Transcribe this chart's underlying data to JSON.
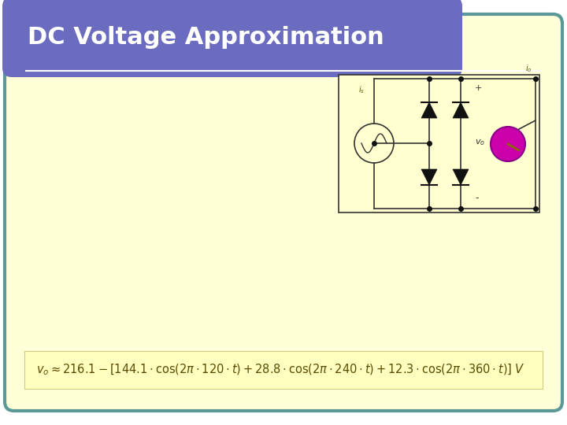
{
  "title": "DC Voltage Approximation",
  "title_color": "#ffffff",
  "title_bg_color": "#6B6BBF",
  "slide_bg_color": "#ffffff",
  "content_bg_color": "#FFFFD8",
  "border_color": "#5B9898",
  "formula_text": "$v_o \\approx 216.1 - [144.1 \\cdot \\cos(2\\pi \\cdot 120 \\cdot t) + 28.8 \\cdot \\cos(2\\pi \\cdot 240 \\cdot t) + 12.3 \\cdot \\cos(2\\pi \\cdot 360 \\cdot t)]\\; V$",
  "formula_color": "#5B4B00",
  "figsize": [
    7.2,
    5.4
  ],
  "dpi": 100
}
